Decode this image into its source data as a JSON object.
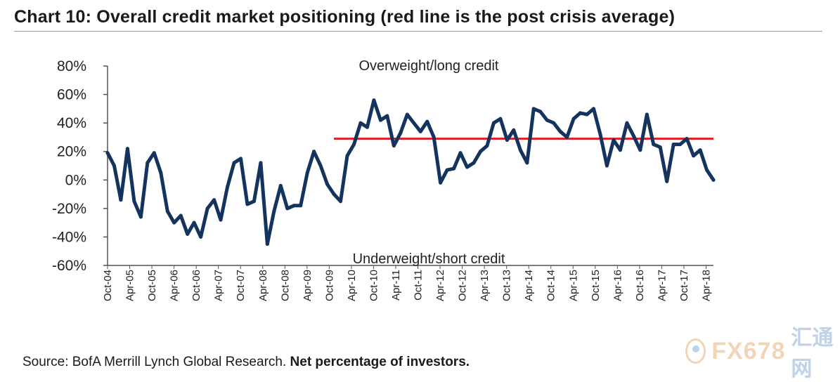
{
  "title": "Chart 10: Overall credit market positioning (red line is the post crisis average)",
  "source_text": "Source: BofA Merrill Lynch Global Research.",
  "source_bold": "Net percentage of investors.",
  "watermark": {
    "text": "FX678",
    "cn": "汇通网"
  },
  "colors": {
    "series": "#14345e",
    "average": "#e0242c",
    "axis": "#555555"
  },
  "chart_data": {
    "type": "line",
    "title": "Chart 10: Overall credit market positioning (red line is the post crisis average)",
    "xlabel": "",
    "ylabel": "Net percentage of investors",
    "ylim": [
      -60,
      80
    ],
    "yticks": [
      "80%",
      "60%",
      "40%",
      "20%",
      "0%",
      "-20%",
      "-40%",
      "-60%"
    ],
    "ytick_values": [
      80,
      60,
      40,
      20,
      0,
      -20,
      -40,
      -60
    ],
    "x_start": "Oct-04",
    "x_end": "Jun-18",
    "xticks": [
      "Oct-04",
      "Apr-05",
      "Oct-05",
      "Apr-06",
      "Oct-06",
      "Apr-07",
      "Oct-07",
      "Apr-08",
      "Oct-08",
      "Apr-09",
      "Oct-09",
      "Apr-10",
      "Oct-10",
      "Apr-11",
      "Oct-11",
      "Apr-12",
      "Oct-12",
      "Apr-13",
      "Oct-13",
      "Apr-14",
      "Oct-14",
      "Apr-15",
      "Oct-15",
      "Apr-16",
      "Oct-16",
      "Apr-17",
      "Oct-17",
      "Apr-18"
    ],
    "annotations": {
      "top": "Overweight/long credit",
      "bottom": "Underweight/short credit"
    },
    "average": {
      "name": "Post crisis average",
      "value": 29,
      "from_index": 34
    },
    "series": [
      {
        "name": "Overall credit market positioning",
        "values": [
          19,
          10,
          -14,
          22,
          -15,
          -26,
          12,
          19,
          5,
          -22,
          -30,
          -25,
          -38,
          -30,
          -40,
          -20,
          -14,
          -28,
          -5,
          12,
          15,
          -17,
          -15,
          12,
          -45,
          -22,
          -4,
          -20,
          -18,
          -18,
          5,
          20,
          10,
          -3,
          -10,
          -15,
          17,
          25,
          40,
          37,
          56,
          42,
          45,
          24,
          33,
          46,
          40,
          34,
          41,
          30,
          -2,
          7,
          8,
          19,
          9,
          12,
          20,
          24,
          40,
          43,
          28,
          35,
          21,
          12,
          50,
          48,
          42,
          40,
          34,
          30,
          43,
          47,
          46,
          50,
          32,
          10,
          28,
          21,
          40,
          31,
          21,
          46,
          25,
          23,
          -1,
          25,
          25,
          29,
          17,
          21,
          7,
          0
        ]
      }
    ]
  }
}
